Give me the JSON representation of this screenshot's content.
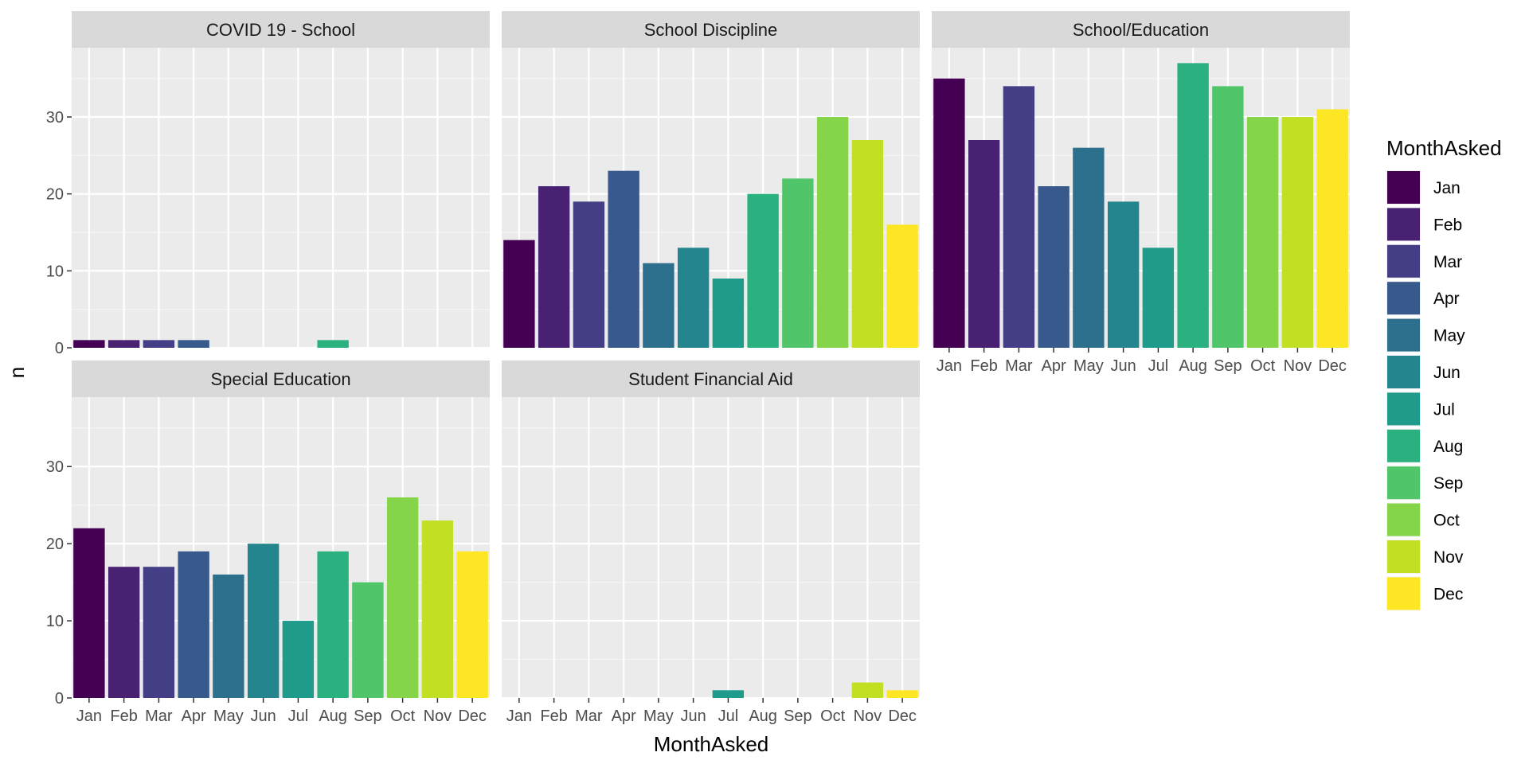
{
  "chart_data": {
    "type": "bar",
    "faceted": true,
    "xlabel": "MonthAsked",
    "ylabel": "n",
    "ylim": [
      0,
      39
    ],
    "yticks": [
      0,
      10,
      20,
      30
    ],
    "grid": true,
    "legend": {
      "title": "MonthAsked",
      "position": "right",
      "entries": [
        "Jan",
        "Feb",
        "Mar",
        "Apr",
        "May",
        "Jun",
        "Jul",
        "Aug",
        "Sep",
        "Oct",
        "Nov",
        "Dec"
      ]
    },
    "categories": [
      "Jan",
      "Feb",
      "Mar",
      "Apr",
      "May",
      "Jun",
      "Jul",
      "Aug",
      "Sep",
      "Oct",
      "Nov",
      "Dec"
    ],
    "colors": [
      "#440154",
      "#482173",
      "#433E85",
      "#38598C",
      "#2D708E",
      "#25858E",
      "#1E9B8A",
      "#2BB07F",
      "#51C56A",
      "#85D54A",
      "#C2DF23",
      "#FDE725"
    ],
    "panels": [
      {
        "title": "COVID 19 - School",
        "values": [
          1,
          1,
          1,
          1,
          0,
          0,
          0,
          1,
          0,
          0,
          0,
          0
        ]
      },
      {
        "title": "School Discipline",
        "values": [
          14,
          21,
          19,
          23,
          11,
          13,
          9,
          20,
          22,
          30,
          27,
          16
        ]
      },
      {
        "title": "School/Education",
        "values": [
          35,
          27,
          34,
          21,
          26,
          19,
          13,
          37,
          34,
          30,
          30,
          31
        ]
      },
      {
        "title": "Special Education",
        "values": [
          22,
          17,
          17,
          19,
          16,
          20,
          10,
          19,
          15,
          26,
          23,
          19
        ]
      },
      {
        "title": "Student Financial Aid",
        "values": [
          0,
          0,
          0,
          0,
          0,
          0,
          1,
          0,
          0,
          0,
          2,
          1
        ]
      }
    ]
  }
}
